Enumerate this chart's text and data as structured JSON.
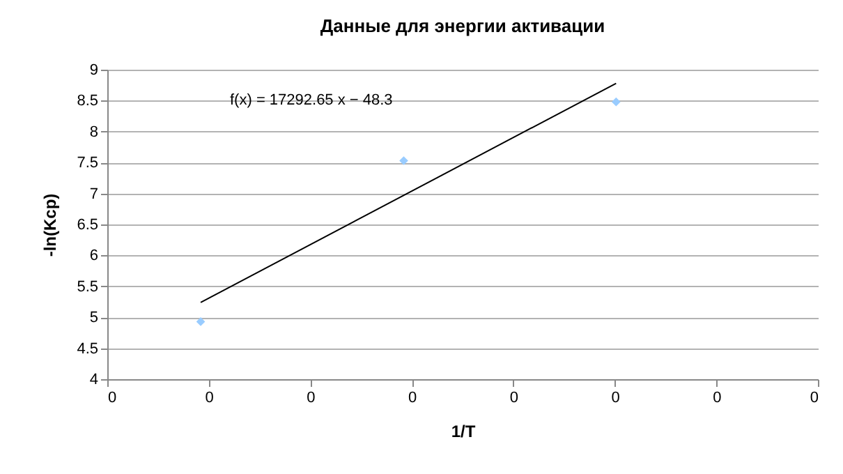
{
  "chart_data": {
    "type": "scatter",
    "title": "Данные для энергии активации",
    "xlabel": "1/T",
    "ylabel": "-ln(Kcp)",
    "annotations": [
      "f(x) = 17292.65 x − 48.3"
    ],
    "x": [
      0.003096,
      0.003196,
      0.0033006
    ],
    "series": [
      {
        "type": "scatter",
        "color": "#99ccff",
        "marker": "diamond",
        "values": [
          4.93,
          7.53,
          8.48
        ]
      },
      {
        "type": "line",
        "color": "#000000",
        "marker": "none",
        "x": [
          0.003096,
          0.0033006
        ],
        "values": [
          5.24,
          8.78
        ]
      }
    ],
    "xlim": [
      0.00305,
      0.0034
    ],
    "xticks": [
      {
        "value": 0.00305,
        "label": "0"
      },
      {
        "value": 0.0031,
        "label": "0"
      },
      {
        "value": 0.00315,
        "label": "0"
      },
      {
        "value": 0.0032,
        "label": "0"
      },
      {
        "value": 0.00325,
        "label": "0"
      },
      {
        "value": 0.0033,
        "label": "0"
      },
      {
        "value": 0.00335,
        "label": "0"
      },
      {
        "value": 0.0034,
        "label": "0"
      }
    ],
    "ylim": [
      4,
      9
    ],
    "yticks": [
      4,
      4.5,
      5,
      5.5,
      6,
      6.5,
      7,
      7.5,
      8,
      8.5,
      9
    ],
    "grid": "y",
    "legend": false
  }
}
